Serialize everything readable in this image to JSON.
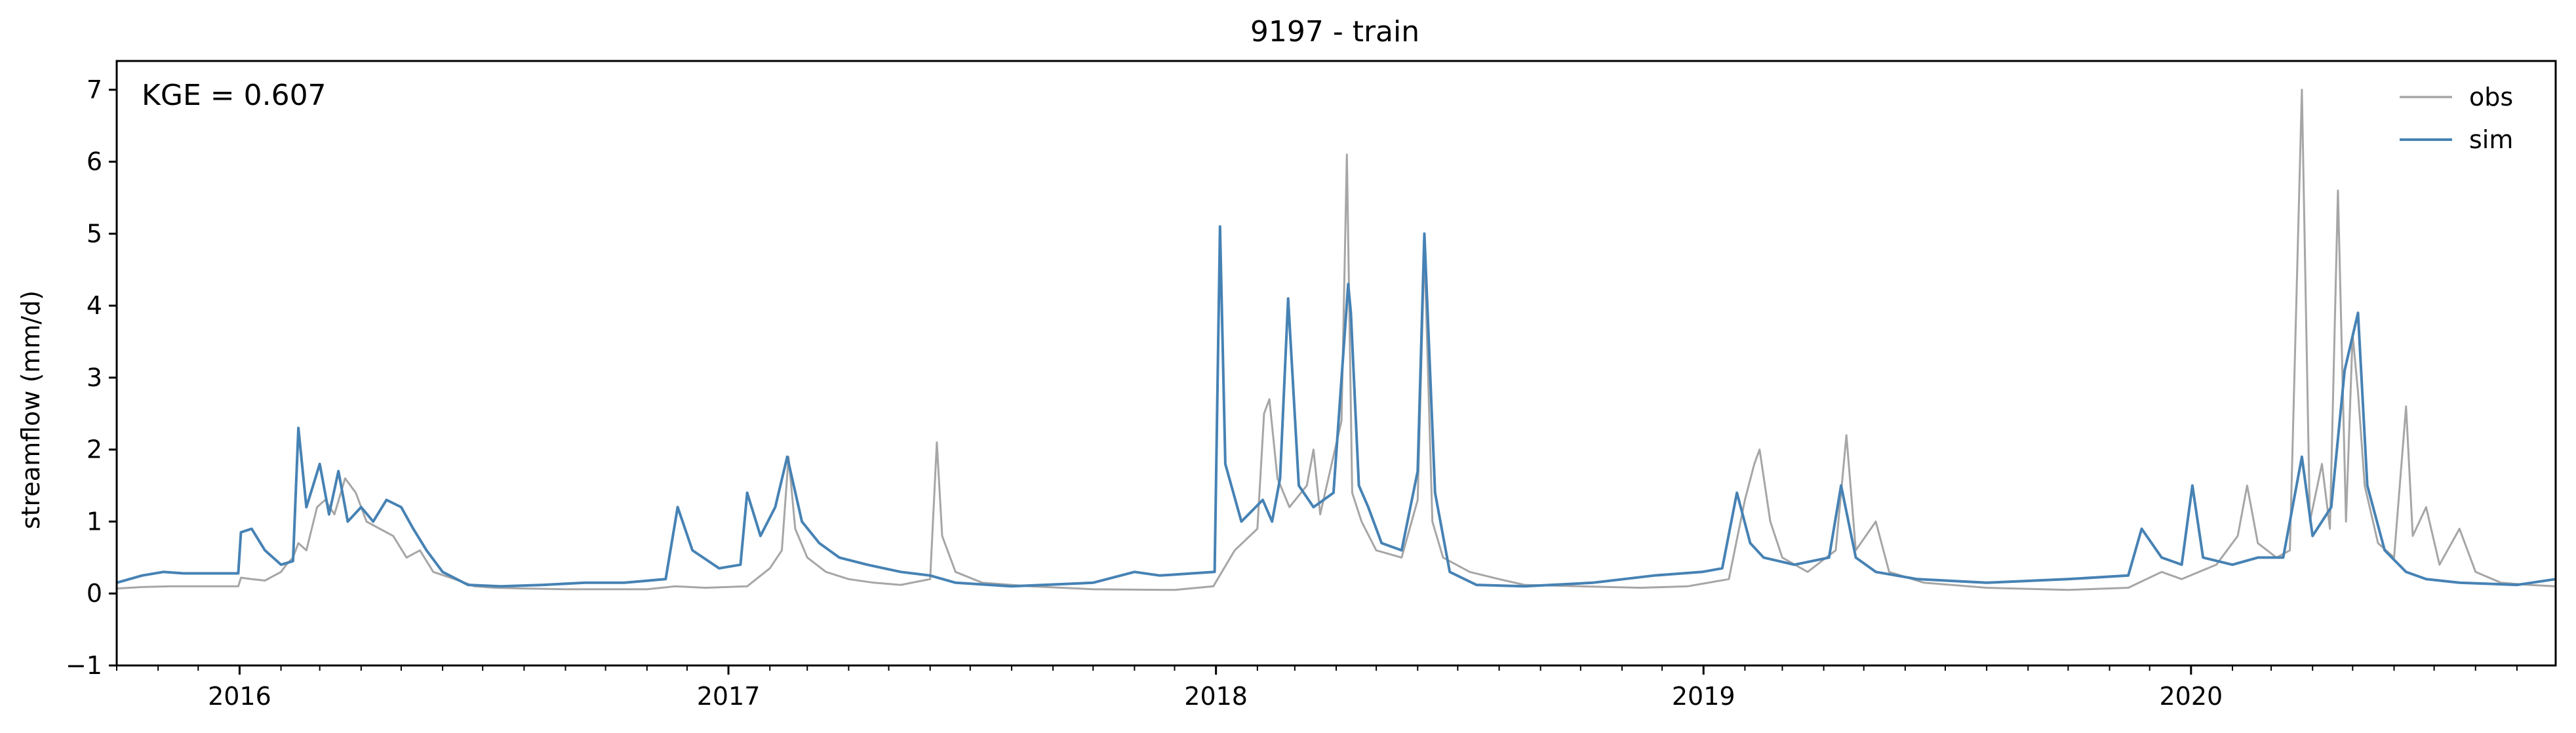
{
  "chart_data": {
    "type": "line",
    "title": "9197 - train",
    "xlabel": "",
    "ylabel": "streamflow (mm/d)",
    "annotation": "KGE = 0.607",
    "xlim": [
      "2015-10-01",
      "2020-09-30"
    ],
    "ylim": [
      -1,
      7.4
    ],
    "yticks": [
      -1,
      0,
      1,
      2,
      3,
      4,
      5,
      6,
      7
    ],
    "xticks": [
      "2016-01-01",
      "2017-01-01",
      "2018-01-01",
      "2019-01-01",
      "2020-01-01"
    ],
    "xtick_labels": [
      "2016",
      "2017",
      "2018",
      "2019",
      "2020"
    ],
    "minor_ticks": "monthly",
    "grid": false,
    "legend": "top-right",
    "series": [
      {
        "name": "obs",
        "color": "#a6a6a6",
        "points": [
          [
            "2015-10-01",
            0.07
          ],
          [
            "2015-10-20",
            0.09
          ],
          [
            "2015-11-10",
            0.1
          ],
          [
            "2015-12-01",
            0.1
          ],
          [
            "2015-12-20",
            0.1
          ],
          [
            "2015-12-31",
            0.1
          ],
          [
            "2016-01-02",
            0.22
          ],
          [
            "2016-01-10",
            0.2
          ],
          [
            "2016-01-20",
            0.18
          ],
          [
            "2016-02-01",
            0.3
          ],
          [
            "2016-02-05",
            0.4
          ],
          [
            "2016-02-10",
            0.5
          ],
          [
            "2016-02-14",
            0.7
          ],
          [
            "2016-02-20",
            0.6
          ],
          [
            "2016-02-28",
            1.2
          ],
          [
            "2016-03-05",
            1.3
          ],
          [
            "2016-03-12",
            1.1
          ],
          [
            "2016-03-20",
            1.6
          ],
          [
            "2016-03-28",
            1.4
          ],
          [
            "2016-04-05",
            1.0
          ],
          [
            "2016-04-15",
            0.9
          ],
          [
            "2016-04-25",
            0.8
          ],
          [
            "2016-05-05",
            0.5
          ],
          [
            "2016-05-15",
            0.6
          ],
          [
            "2016-05-25",
            0.3
          ],
          [
            "2016-06-10",
            0.2
          ],
          [
            "2016-06-25",
            0.1
          ],
          [
            "2016-07-10",
            0.08
          ],
          [
            "2016-08-01",
            0.07
          ],
          [
            "2016-09-01",
            0.06
          ],
          [
            "2016-10-01",
            0.06
          ],
          [
            "2016-11-01",
            0.06
          ],
          [
            "2016-11-22",
            0.1
          ],
          [
            "2016-12-15",
            0.08
          ],
          [
            "2017-01-15",
            0.1
          ],
          [
            "2017-02-01",
            0.35
          ],
          [
            "2017-02-10",
            0.6
          ],
          [
            "2017-02-15",
            1.9
          ],
          [
            "2017-02-20",
            0.9
          ],
          [
            "2017-03-01",
            0.5
          ],
          [
            "2017-03-15",
            0.3
          ],
          [
            "2017-04-01",
            0.2
          ],
          [
            "2017-04-20",
            0.15
          ],
          [
            "2017-05-10",
            0.12
          ],
          [
            "2017-06-01",
            0.2
          ],
          [
            "2017-06-06",
            2.1
          ],
          [
            "2017-06-10",
            0.8
          ],
          [
            "2017-06-20",
            0.3
          ],
          [
            "2017-07-10",
            0.15
          ],
          [
            "2017-08-15",
            0.1
          ],
          [
            "2017-10-01",
            0.06
          ],
          [
            "2017-12-01",
            0.05
          ],
          [
            "2017-12-30",
            0.1
          ],
          [
            "2018-01-15",
            0.6
          ],
          [
            "2018-02-01",
            0.9
          ],
          [
            "2018-02-06",
            2.5
          ],
          [
            "2018-02-10",
            2.7
          ],
          [
            "2018-02-16",
            1.6
          ],
          [
            "2018-02-25",
            1.2
          ],
          [
            "2018-03-10",
            1.5
          ],
          [
            "2018-03-15",
            2.0
          ],
          [
            "2018-03-20",
            1.1
          ],
          [
            "2018-04-05",
            2.4
          ],
          [
            "2018-04-09",
            6.1
          ],
          [
            "2018-04-13",
            1.4
          ],
          [
            "2018-04-20",
            1.0
          ],
          [
            "2018-05-01",
            0.6
          ],
          [
            "2018-05-20",
            0.5
          ],
          [
            "2018-06-01",
            1.3
          ],
          [
            "2018-06-06",
            4.8
          ],
          [
            "2018-06-12",
            1.0
          ],
          [
            "2018-06-20",
            0.5
          ],
          [
            "2018-07-10",
            0.3
          ],
          [
            "2018-08-01",
            0.2
          ],
          [
            "2018-08-20",
            0.12
          ],
          [
            "2018-10-01",
            0.1
          ],
          [
            "2018-11-15",
            0.08
          ],
          [
            "2018-12-20",
            0.1
          ],
          [
            "2019-01-20",
            0.2
          ],
          [
            "2019-02-01",
            1.3
          ],
          [
            "2019-02-08",
            1.8
          ],
          [
            "2019-02-12",
            2.0
          ],
          [
            "2019-02-20",
            1.0
          ],
          [
            "2019-03-01",
            0.5
          ],
          [
            "2019-03-20",
            0.3
          ],
          [
            "2019-04-10",
            0.6
          ],
          [
            "2019-04-18",
            2.2
          ],
          [
            "2019-04-25",
            0.6
          ],
          [
            "2019-05-10",
            1.0
          ],
          [
            "2019-05-20",
            0.3
          ],
          [
            "2019-06-15",
            0.15
          ],
          [
            "2019-08-01",
            0.08
          ],
          [
            "2019-10-01",
            0.05
          ],
          [
            "2019-11-15",
            0.08
          ],
          [
            "2019-12-10",
            0.3
          ],
          [
            "2019-12-25",
            0.2
          ],
          [
            "2020-01-20",
            0.4
          ],
          [
            "2020-02-05",
            0.8
          ],
          [
            "2020-02-12",
            1.5
          ],
          [
            "2020-02-20",
            0.7
          ],
          [
            "2020-03-05",
            0.5
          ],
          [
            "2020-03-15",
            0.6
          ],
          [
            "2020-03-24",
            7.0
          ],
          [
            "2020-03-30",
            1.0
          ],
          [
            "2020-04-08",
            1.8
          ],
          [
            "2020-04-14",
            0.9
          ],
          [
            "2020-04-20",
            5.6
          ],
          [
            "2020-04-26",
            1.0
          ],
          [
            "2020-05-01",
            3.6
          ],
          [
            "2020-05-05",
            2.8
          ],
          [
            "2020-05-10",
            1.5
          ],
          [
            "2020-05-20",
            0.7
          ],
          [
            "2020-06-01",
            0.5
          ],
          [
            "2020-06-10",
            2.6
          ],
          [
            "2020-06-15",
            0.8
          ],
          [
            "2020-06-25",
            1.2
          ],
          [
            "2020-07-05",
            0.4
          ],
          [
            "2020-07-20",
            0.9
          ],
          [
            "2020-08-01",
            0.3
          ],
          [
            "2020-08-20",
            0.15
          ],
          [
            "2020-09-10",
            0.12
          ],
          [
            "2020-09-30",
            0.1
          ]
        ]
      },
      {
        "name": "sim",
        "color": "#4682b4",
        "points": [
          [
            "2015-10-01",
            0.15
          ],
          [
            "2015-10-20",
            0.25
          ],
          [
            "2015-11-05",
            0.3
          ],
          [
            "2015-11-20",
            0.28
          ],
          [
            "2015-12-10",
            0.28
          ],
          [
            "2015-12-31",
            0.28
          ],
          [
            "2016-01-02",
            0.85
          ],
          [
            "2016-01-10",
            0.9
          ],
          [
            "2016-01-20",
            0.6
          ],
          [
            "2016-02-01",
            0.4
          ],
          [
            "2016-02-10",
            0.45
          ],
          [
            "2016-02-14",
            2.3
          ],
          [
            "2016-02-20",
            1.2
          ],
          [
            "2016-03-01",
            1.8
          ],
          [
            "2016-03-08",
            1.1
          ],
          [
            "2016-03-15",
            1.7
          ],
          [
            "2016-03-22",
            1.0
          ],
          [
            "2016-04-01",
            1.2
          ],
          [
            "2016-04-10",
            1.0
          ],
          [
            "2016-04-20",
            1.3
          ],
          [
            "2016-05-01",
            1.2
          ],
          [
            "2016-05-10",
            0.9
          ],
          [
            "2016-05-20",
            0.6
          ],
          [
            "2016-06-01",
            0.3
          ],
          [
            "2016-06-20",
            0.12
          ],
          [
            "2016-07-15",
            0.1
          ],
          [
            "2016-08-15",
            0.12
          ],
          [
            "2016-09-15",
            0.15
          ],
          [
            "2016-10-15",
            0.15
          ],
          [
            "2016-11-15",
            0.2
          ],
          [
            "2016-11-24",
            1.2
          ],
          [
            "2016-12-05",
            0.6
          ],
          [
            "2016-12-25",
            0.35
          ],
          [
            "2017-01-10",
            0.4
          ],
          [
            "2017-01-15",
            1.4
          ],
          [
            "2017-01-25",
            0.8
          ],
          [
            "2017-02-05",
            1.2
          ],
          [
            "2017-02-14",
            1.9
          ],
          [
            "2017-02-25",
            1.0
          ],
          [
            "2017-03-10",
            0.7
          ],
          [
            "2017-03-25",
            0.5
          ],
          [
            "2017-04-15",
            0.4
          ],
          [
            "2017-05-10",
            0.3
          ],
          [
            "2017-06-01",
            0.25
          ],
          [
            "2017-06-20",
            0.15
          ],
          [
            "2017-08-01",
            0.1
          ],
          [
            "2017-10-01",
            0.15
          ],
          [
            "2017-11-01",
            0.3
          ],
          [
            "2017-11-20",
            0.25
          ],
          [
            "2017-12-31",
            0.3
          ],
          [
            "2018-01-04",
            5.1
          ],
          [
            "2018-01-08",
            1.8
          ],
          [
            "2018-01-20",
            1.0
          ],
          [
            "2018-02-05",
            1.3
          ],
          [
            "2018-02-12",
            1.0
          ],
          [
            "2018-02-18",
            1.6
          ],
          [
            "2018-02-24",
            4.1
          ],
          [
            "2018-03-04",
            1.5
          ],
          [
            "2018-03-15",
            1.2
          ],
          [
            "2018-03-30",
            1.4
          ],
          [
            "2018-04-10",
            4.3
          ],
          [
            "2018-04-12",
            3.9
          ],
          [
            "2018-04-18",
            1.5
          ],
          [
            "2018-04-25",
            1.2
          ],
          [
            "2018-05-05",
            0.7
          ],
          [
            "2018-05-20",
            0.6
          ],
          [
            "2018-06-01",
            1.7
          ],
          [
            "2018-06-06",
            5.0
          ],
          [
            "2018-06-14",
            1.4
          ],
          [
            "2018-06-25",
            0.3
          ],
          [
            "2018-07-15",
            0.12
          ],
          [
            "2018-08-20",
            0.1
          ],
          [
            "2018-10-10",
            0.15
          ],
          [
            "2018-11-25",
            0.25
          ],
          [
            "2018-12-31",
            0.3
          ],
          [
            "2019-01-15",
            0.35
          ],
          [
            "2019-01-26",
            1.4
          ],
          [
            "2019-02-05",
            0.7
          ],
          [
            "2019-02-15",
            0.5
          ],
          [
            "2019-03-10",
            0.4
          ],
          [
            "2019-04-05",
            0.5
          ],
          [
            "2019-04-14",
            1.5
          ],
          [
            "2019-04-25",
            0.5
          ],
          [
            "2019-05-10",
            0.3
          ],
          [
            "2019-06-10",
            0.2
          ],
          [
            "2019-08-01",
            0.15
          ],
          [
            "2019-10-01",
            0.2
          ],
          [
            "2019-11-15",
            0.25
          ],
          [
            "2019-11-25",
            0.9
          ],
          [
            "2019-12-10",
            0.5
          ],
          [
            "2019-12-25",
            0.4
          ],
          [
            "2020-01-02",
            1.5
          ],
          [
            "2020-01-10",
            0.5
          ],
          [
            "2020-02-01",
            0.4
          ],
          [
            "2020-02-20",
            0.5
          ],
          [
            "2020-03-10",
            0.5
          ],
          [
            "2020-03-24",
            1.9
          ],
          [
            "2020-04-01",
            0.8
          ],
          [
            "2020-04-15",
            1.2
          ],
          [
            "2020-04-25",
            3.1
          ],
          [
            "2020-05-05",
            3.9
          ],
          [
            "2020-05-12",
            1.5
          ],
          [
            "2020-05-25",
            0.6
          ],
          [
            "2020-06-10",
            0.3
          ],
          [
            "2020-06-25",
            0.2
          ],
          [
            "2020-07-20",
            0.15
          ],
          [
            "2020-09-01",
            0.12
          ],
          [
            "2020-09-30",
            0.2
          ]
        ]
      }
    ]
  }
}
